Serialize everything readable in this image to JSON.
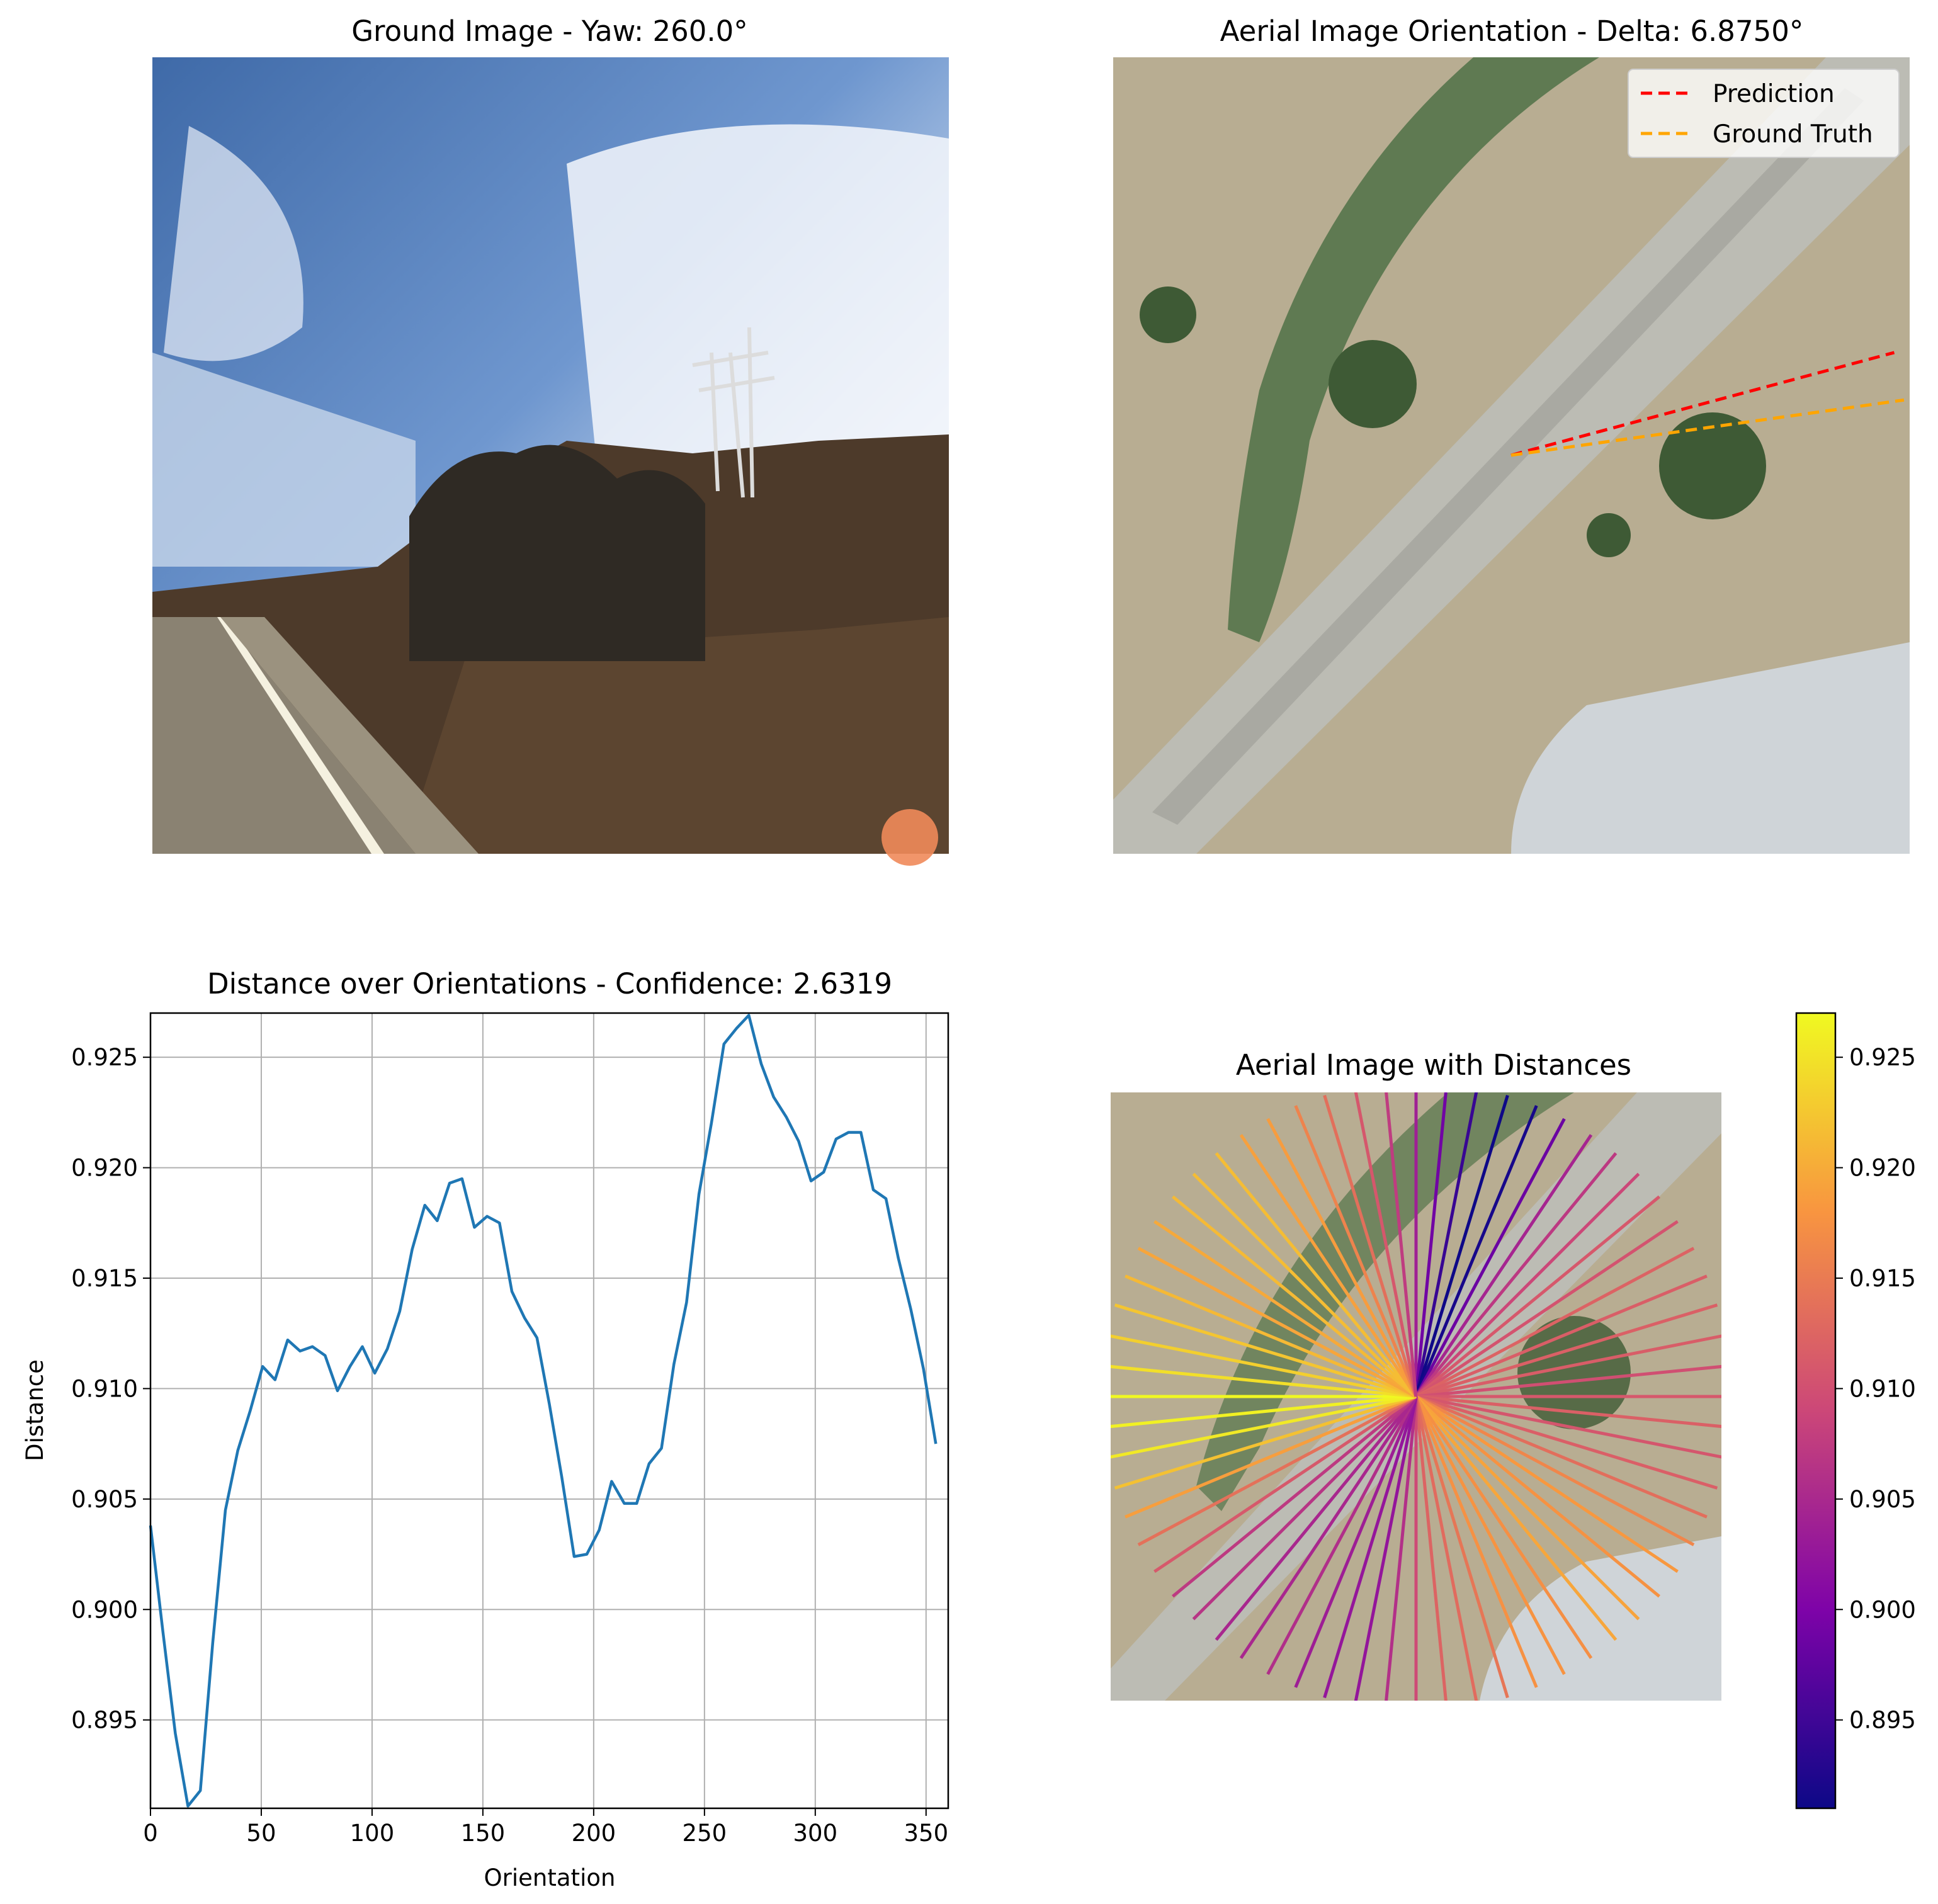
{
  "colors": {
    "series_line": "#1f77b4",
    "prediction": "#ff0000",
    "ground_truth": "#ffa500",
    "grid": "#b0b0b0"
  },
  "panels": {
    "ground_title": "Ground Image - Yaw: 260.0°",
    "aerial_title": "Aerial Image Orientation - Delta: 6.8750°",
    "distance_title": "Distance over Orientations - Confidence: 2.6319",
    "rays_title": "Aerial Image with Distances"
  },
  "legend": {
    "prediction": "Prediction",
    "ground_truth": "Ground Truth"
  },
  "orientation_lines": {
    "prediction_deg": 15,
    "ground_truth_deg": 8
  },
  "chart_data": {
    "type": "line",
    "title": "Distance over Orientations - Confidence: 2.6319",
    "xlabel": "Orientation",
    "ylabel": "Distance",
    "xlim": [
      0,
      360
    ],
    "ylim": [
      0.891,
      0.927
    ],
    "grid": true,
    "xticks": [
      "0",
      "50",
      "100",
      "150",
      "200",
      "250",
      "300",
      "350"
    ],
    "yticks": [
      "0.895",
      "0.900",
      "0.905",
      "0.910",
      "0.915",
      "0.920",
      "0.925"
    ],
    "x": [
      0,
      5.6,
      11.2,
      16.9,
      22.5,
      28.1,
      33.8,
      39.4,
      45,
      50.6,
      56.2,
      61.9,
      67.5,
      73.1,
      78.8,
      84.4,
      90,
      95.6,
      101.2,
      106.9,
      112.5,
      118.1,
      123.8,
      129.4,
      135,
      140.6,
      146.2,
      151.9,
      157.5,
      163.1,
      168.8,
      174.4,
      180,
      185.6,
      191.2,
      196.9,
      202.5,
      208.1,
      213.8,
      219.4,
      225,
      230.6,
      236.2,
      241.9,
      247.5,
      253.1,
      258.8,
      264.4,
      270,
      275.6,
      281.2,
      286.9,
      292.5,
      298.1,
      303.8,
      309.4,
      315,
      320.6,
      326.2,
      331.9,
      337.5,
      343.1,
      348.8,
      354.4
    ],
    "y": [
      0.9038,
      0.899,
      0.8944,
      0.8911,
      0.8918,
      0.8985,
      0.9045,
      0.9072,
      0.909,
      0.911,
      0.9104,
      0.9122,
      0.9117,
      0.9119,
      0.9115,
      0.9099,
      0.911,
      0.9119,
      0.9107,
      0.9118,
      0.9135,
      0.9163,
      0.9183,
      0.9176,
      0.9193,
      0.9195,
      0.9173,
      0.9178,
      0.9175,
      0.9144,
      0.9132,
      0.9123,
      0.9093,
      0.906,
      0.9024,
      0.9025,
      0.9036,
      0.9058,
      0.9048,
      0.9048,
      0.9066,
      0.9073,
      0.9111,
      0.9139,
      0.9188,
      0.922,
      0.9256,
      0.9263,
      0.9269,
      0.9247,
      0.9232,
      0.9223,
      0.9212,
      0.9194,
      0.9198,
      0.9213,
      0.9216,
      0.9216,
      0.919,
      0.9186,
      0.9159,
      0.9136,
      0.9109,
      0.9075
    ]
  },
  "colorbar": {
    "colormap": "plasma",
    "range": [
      0.891,
      0.927
    ],
    "ticks": [
      "0.895",
      "0.900",
      "0.905",
      "0.910",
      "0.915",
      "0.920",
      "0.925"
    ]
  }
}
